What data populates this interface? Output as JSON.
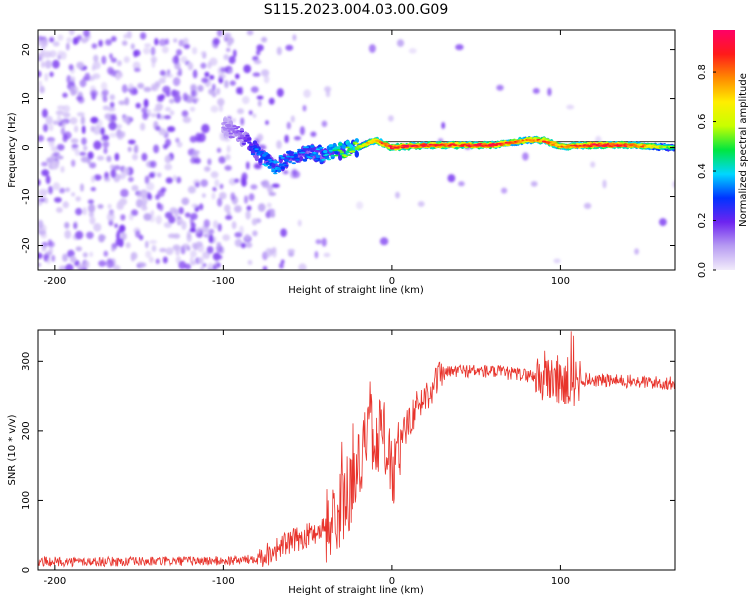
{
  "title": "S115.2023.004.03.00.G09",
  "colors": {
    "snr_line": "#e8342c",
    "colormap_stops": [
      "#f2ecfb",
      "#b79bf2",
      "#6d24f0",
      "#0033ff",
      "#00d7ff",
      "#00e640",
      "#c8ff00",
      "#ffee00",
      "#ff8a00",
      "#ff1a1a",
      "#ff0066"
    ]
  },
  "chart_data": [
    {
      "type": "heatmap",
      "title": "S115.2023.004.03.00.G09",
      "xlabel": "Height of straight line (km)",
      "ylabel": "Frequency (Hz)",
      "xlim": [
        -210,
        168
      ],
      "ylim": [
        -25,
        24
      ],
      "x_ticks": [
        -200,
        -100,
        0,
        100
      ],
      "x_tick_labels": [
        "-200",
        "-100",
        "0",
        "100"
      ],
      "y_ticks": [
        -20,
        -10,
        0,
        10,
        20
      ],
      "y_tick_labels": [
        "-20",
        "-10",
        "0",
        "10",
        "20"
      ],
      "colorbar": {
        "label": "Normalized spectral amplitude",
        "range": [
          0,
          0.97
        ],
        "ticks": [
          0,
          0.2,
          0.4,
          0.6,
          0.8
        ],
        "tick_labels": [
          "0.0",
          "0.2",
          "0.4",
          "0.6",
          "0.8"
        ]
      },
      "ridge": {
        "description_values_x": [
          -100,
          -90,
          -80,
          -70,
          -60,
          -50,
          -40,
          -30,
          -20,
          -10,
          0,
          20,
          40,
          60,
          80,
          90,
          100,
          120,
          140,
          168
        ],
        "frequency_hz": [
          4.5,
          2.5,
          -1.0,
          -4.0,
          -2.0,
          -1.0,
          -1.5,
          -0.5,
          0.0,
          1.5,
          0.0,
          0.5,
          0.5,
          0.5,
          1.5,
          1.5,
          0.2,
          0.5,
          0.5,
          0.0
        ],
        "amplitude": [
          0.1,
          0.15,
          0.3,
          0.35,
          0.3,
          0.3,
          0.35,
          0.45,
          0.55,
          0.7,
          0.85,
          0.8,
          0.8,
          0.85,
          0.7,
          0.75,
          0.7,
          0.85,
          0.8,
          0.45
        ]
      }
    },
    {
      "type": "line",
      "xlabel": "Height of straight line (km)",
      "ylabel": "SNR (10 * v/v)",
      "xlim": [
        -210,
        168
      ],
      "ylim": [
        0,
        345
      ],
      "x_ticks": [
        -200,
        -100,
        0,
        100
      ],
      "x_tick_labels": [
        "-200",
        "-100",
        "0",
        "100"
      ],
      "y_ticks": [
        0,
        100,
        200,
        300
      ],
      "y_tick_labels": [
        "0",
        "100",
        "200",
        "300"
      ],
      "series": [
        {
          "x": [
            -210,
            -180,
            -150,
            -120,
            -100,
            -85,
            -75,
            -65,
            -55,
            -45,
            -35,
            -28,
            -22,
            -18,
            -12,
            -5,
            0,
            5,
            10,
            15,
            20,
            25,
            30,
            40,
            60,
            80,
            95,
            100,
            105,
            110,
            120,
            140,
            168
          ],
          "y": [
            12,
            12,
            12,
            13,
            13,
            15,
            22,
            35,
            45,
            55,
            70,
            95,
            130,
            170,
            190,
            200,
            130,
            180,
            215,
            235,
            250,
            268,
            282,
            287,
            285,
            280,
            276,
            270,
            268,
            275,
            273,
            271,
            268
          ]
        }
      ]
    }
  ]
}
